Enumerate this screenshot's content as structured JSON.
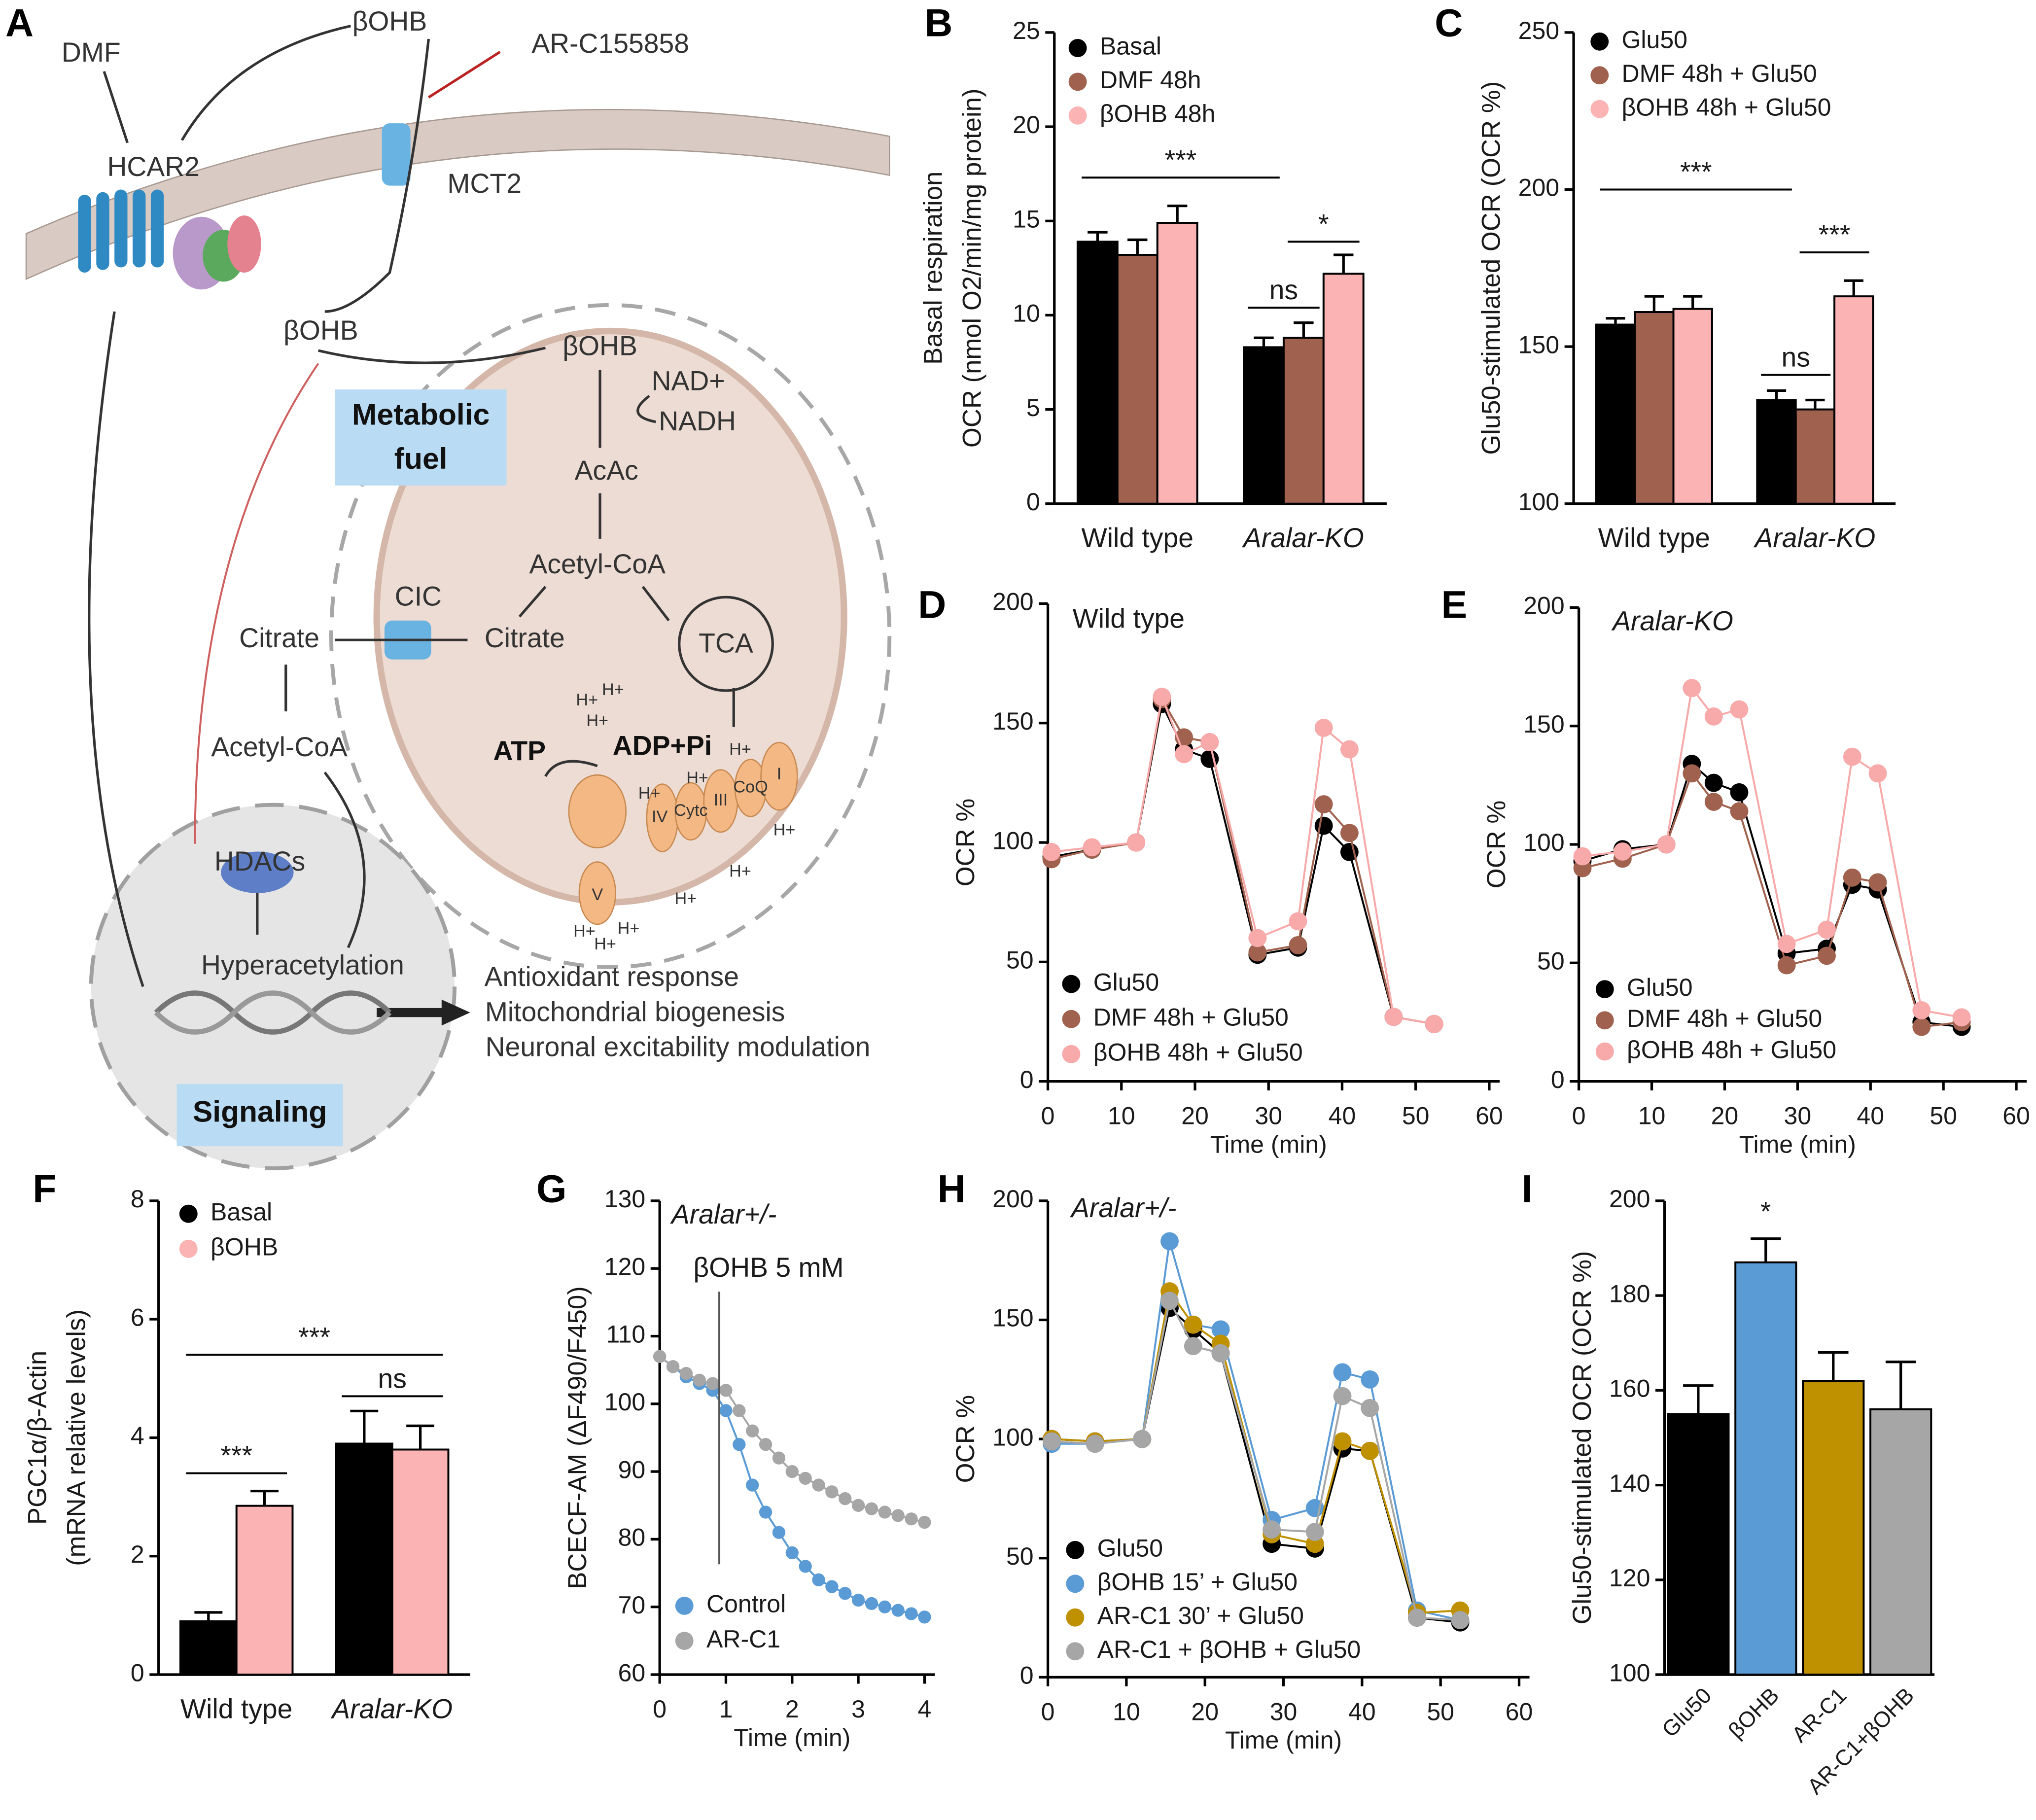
{
  "diagram": {
    "panel": "A",
    "labels": [
      "DMF",
      "βOHB",
      "AR-C155858",
      "HCAR2",
      "MCT2",
      "βOHB",
      "βOHB",
      "NAD+",
      "NADH",
      "Metabolic",
      "fuel",
      "AcAc",
      "Acetyl-CoA",
      "CIC",
      "Citrate",
      "Citrate",
      "TCA",
      "Acetyl-CoA",
      "ATP",
      "ADP+Pi",
      "V",
      "IV",
      "Cytc",
      "III",
      "CoQ",
      "I",
      "HDACs",
      "Hyperacetylation",
      "Antioxidant response",
      "Mitochondrial biogenesis",
      "Neuronal excitability modulation",
      "Signaling"
    ],
    "protons": [
      "H+",
      "H+",
      "H+",
      "H+",
      "H+",
      "H+",
      "H+",
      "H+",
      "H+",
      "H+",
      "H+",
      "H+"
    ]
  },
  "chart_data": [
    {
      "panel": "B",
      "type": "bar",
      "categories": [
        "Wild type",
        "Aralar-KO"
      ],
      "ylabel": [
        "Basal respiration",
        "OCR (nmol O2/min/mg protein)"
      ],
      "ylim": [
        0,
        25
      ],
      "yticks": [
        0,
        5,
        10,
        15,
        20,
        25
      ],
      "series": [
        {
          "name": "Basal",
          "color": "#000000",
          "values": [
            13.9,
            8.3
          ],
          "errors": [
            0.5,
            0.5
          ]
        },
        {
          "name": "DMF 48h",
          "color": "#a0614e",
          "values": [
            13.2,
            8.8
          ],
          "errors": [
            0.8,
            0.8
          ]
        },
        {
          "name": "βOHB 48h",
          "color": "#fbb3b3",
          "values": [
            14.9,
            12.2
          ],
          "errors": [
            0.9,
            1.0
          ]
        }
      ],
      "significance": [
        {
          "label": "***",
          "from": [
            0,
            0
          ],
          "to": [
            1,
            0
          ],
          "y": 17.3
        },
        {
          "label": "ns",
          "from": [
            1,
            0
          ],
          "to": [
            1,
            1
          ],
          "y": 10.4
        },
        {
          "label": "*",
          "from": [
            1,
            1
          ],
          "to": [
            1,
            2
          ],
          "y": 13.9
        }
      ]
    },
    {
      "panel": "C",
      "type": "bar",
      "categories": [
        "Wild type",
        "Aralar-KO"
      ],
      "ylabel": [
        "Glu50-stimulated OCR (OCR %)"
      ],
      "ylim": [
        100,
        250
      ],
      "yticks": [
        100,
        150,
        200,
        250
      ],
      "series": [
        {
          "name": "Glu50",
          "color": "#000000",
          "values": [
            157,
            133
          ],
          "errors": [
            2,
            3
          ]
        },
        {
          "name": "DMF 48h + Glu50",
          "color": "#a0614e",
          "values": [
            161,
            130
          ],
          "errors": [
            5,
            3
          ]
        },
        {
          "name": "βOHB 48h + Glu50",
          "color": "#fbb3b3",
          "values": [
            162,
            166
          ],
          "errors": [
            4,
            5
          ]
        }
      ],
      "significance": [
        {
          "label": "***",
          "from": [
            0,
            0
          ],
          "to": [
            1,
            0
          ],
          "y": 200
        },
        {
          "label": "ns",
          "from": [
            1,
            0
          ],
          "to": [
            1,
            1
          ],
          "y": 141
        },
        {
          "label": "***",
          "from": [
            1,
            1
          ],
          "to": [
            1,
            2
          ],
          "y": 180
        }
      ]
    },
    {
      "panel": "D",
      "type": "line",
      "subtitle": "Wild type",
      "xlabel": "Time (min)",
      "ylabel": [
        "OCR %"
      ],
      "x": [
        0.5,
        6,
        12,
        15.5,
        18.5,
        22,
        28.5,
        34,
        37.5,
        41,
        47,
        52.5
      ],
      "xlim": [
        0,
        60
      ],
      "xticks": [
        0,
        10,
        20,
        30,
        40,
        50,
        60
      ],
      "ylim": [
        0,
        200
      ],
      "yticks": [
        0,
        50,
        100,
        150,
        200
      ],
      "series": [
        {
          "name": "Glu50",
          "color": "#000000",
          "values": [
            94,
            97,
            100,
            158,
            139,
            135,
            53,
            56,
            107,
            96,
            27,
            24
          ]
        },
        {
          "name": "DMF 48h + Glu50",
          "color": "#a0614e",
          "values": [
            93,
            97,
            100,
            160,
            144,
            142,
            54,
            57,
            116,
            104,
            27,
            24
          ]
        },
        {
          "name": "βOHB 48h + Glu50",
          "color": "#f8a9a9",
          "values": [
            96,
            98,
            100,
            161,
            137,
            142,
            60,
            67,
            148,
            139,
            27,
            24
          ]
        }
      ]
    },
    {
      "panel": "E",
      "type": "line",
      "subtitle": "Aralar-KO",
      "xlabel": "Time (min)",
      "ylabel": [
        "OCR %"
      ],
      "x": [
        0.5,
        6,
        12,
        15.5,
        18.5,
        22,
        28.5,
        34,
        37.5,
        41,
        47,
        52.5
      ],
      "xlim": [
        0,
        60
      ],
      "xticks": [
        0,
        10,
        20,
        30,
        40,
        50,
        60
      ],
      "ylim": [
        0,
        200
      ],
      "yticks": [
        0,
        50,
        100,
        150,
        200
      ],
      "series": [
        {
          "name": "Glu50",
          "color": "#000000",
          "values": [
            93,
            98,
            100,
            134,
            126,
            122,
            54,
            56,
            83,
            81,
            25,
            23
          ]
        },
        {
          "name": "DMF 48h + Glu50",
          "color": "#a0614e",
          "values": [
            90,
            94,
            100,
            130,
            118,
            114,
            49,
            53,
            86,
            84,
            23,
            25
          ]
        },
        {
          "name": "βOHB 48h + Glu50",
          "color": "#f8a9a9",
          "values": [
            95,
            97,
            100,
            166,
            154,
            157,
            58,
            64,
            137,
            130,
            30,
            27
          ]
        }
      ]
    },
    {
      "panel": "F",
      "type": "bar",
      "categories": [
        "Wild type",
        "Aralar-KO"
      ],
      "ylabel": [
        "PGC1α/β-Actin",
        "(mRNA relative levels)"
      ],
      "ylim": [
        0,
        8
      ],
      "yticks": [
        0,
        2,
        4,
        6,
        8
      ],
      "series": [
        {
          "name": "Basal",
          "color": "#000000",
          "values": [
            0.9,
            3.9
          ],
          "errors": [
            0.15,
            0.55
          ]
        },
        {
          "name": "βOHB",
          "color": "#fbb3b3",
          "values": [
            2.85,
            3.8
          ],
          "errors": [
            0.25,
            0.4
          ]
        }
      ],
      "significance": [
        {
          "label": "***",
          "from": [
            0,
            0
          ],
          "to": [
            0,
            1
          ],
          "y": 3.4
        },
        {
          "label": "***",
          "from": [
            0,
            0
          ],
          "to": [
            1,
            1
          ],
          "y": 5.4
        },
        {
          "label": "ns",
          "from": [
            1,
            0
          ],
          "to": [
            1,
            1
          ],
          "y": 4.7
        }
      ]
    },
    {
      "panel": "G",
      "type": "line",
      "subtitle": "Aralar+/-",
      "xlabel": "Time (min)",
      "ylabel": [
        "BCECF-AM (ΔF490/F450)"
      ],
      "annotation": {
        "label": "βOHB 5 mM",
        "x": 0.9
      },
      "x": [
        0,
        0.2,
        0.4,
        0.6,
        0.8,
        1.0,
        1.2,
        1.4,
        1.6,
        1.8,
        2.0,
        2.2,
        2.4,
        2.6,
        2.8,
        3.0,
        3.2,
        3.4,
        3.6,
        3.8,
        4.0
      ],
      "xlim": [
        0,
        4
      ],
      "xticks": [
        0,
        1,
        2,
        3,
        4
      ],
      "ylim": [
        60,
        130
      ],
      "yticks": [
        60,
        70,
        80,
        90,
        100,
        110,
        120,
        130
      ],
      "series": [
        {
          "name": "Control",
          "color": "#5b9bd5",
          "values": [
            107,
            105.5,
            104,
            103,
            102,
            99,
            94,
            88,
            84,
            81,
            78,
            76,
            74,
            73,
            72,
            71,
            70.5,
            70,
            69.5,
            69,
            68.5
          ]
        },
        {
          "name": "AR-C1",
          "color": "#a6a6a6",
          "values": [
            107,
            105.5,
            104.5,
            103.5,
            103,
            102,
            99,
            96,
            94,
            92,
            90,
            89,
            88,
            87,
            86,
            85,
            84.5,
            84,
            83.5,
            83,
            82.5
          ]
        }
      ]
    },
    {
      "panel": "H",
      "type": "line",
      "subtitle": "Aralar+/-",
      "xlabel": "Time (min)",
      "ylabel": [
        "OCR %"
      ],
      "x": [
        0.5,
        6,
        12,
        15.5,
        18.5,
        22,
        28.5,
        34,
        37.5,
        41,
        47,
        52.5
      ],
      "xlim": [
        0,
        60
      ],
      "xticks": [
        0,
        10,
        20,
        30,
        40,
        50,
        60
      ],
      "ylim": [
        0,
        200
      ],
      "yticks": [
        0,
        50,
        100,
        150,
        200
      ],
      "series": [
        {
          "name": "Glu50",
          "color": "#000000",
          "values": [
            100,
            99,
            100,
            155,
            146,
            136,
            56,
            54,
            96,
            95,
            25,
            23
          ]
        },
        {
          "name": "βOHB 15’ + Glu50",
          "color": "#5b9bd5",
          "values": [
            98,
            98,
            100,
            183,
            148,
            146,
            66,
            71,
            128,
            125,
            28,
            24
          ]
        },
        {
          "name": "AR-C1 30’ + Glu50",
          "color": "#bf9000",
          "values": [
            100,
            99,
            100,
            162,
            148,
            140,
            60,
            56,
            99,
            95,
            27,
            28
          ]
        },
        {
          "name": "AR-C1 + βOHB + Glu50",
          "color": "#a6a6a6",
          "values": [
            99,
            98,
            100,
            158,
            139,
            136,
            62,
            61,
            118,
            113,
            25,
            24
          ]
        }
      ]
    },
    {
      "panel": "I",
      "type": "bar",
      "categories": [
        "Glu50",
        "βOHB",
        "AR-C1",
        "AR-C1+βOHB"
      ],
      "ylabel": [
        "Glu50-stimulated OCR (OCR %)"
      ],
      "ylim": [
        100,
        200
      ],
      "yticks": [
        100,
        120,
        140,
        160,
        180,
        200
      ],
      "series": [
        {
          "colors": [
            "#000000",
            "#5b9bd5",
            "#bf9000",
            "#a6a6a6"
          ],
          "values": [
            155,
            187,
            162,
            156
          ],
          "errors": [
            6,
            5,
            6,
            10
          ]
        }
      ],
      "significance": [
        {
          "label": "*",
          "from": [
            1,
            0
          ],
          "to": [
            1,
            0
          ],
          "y": 194
        }
      ]
    }
  ]
}
